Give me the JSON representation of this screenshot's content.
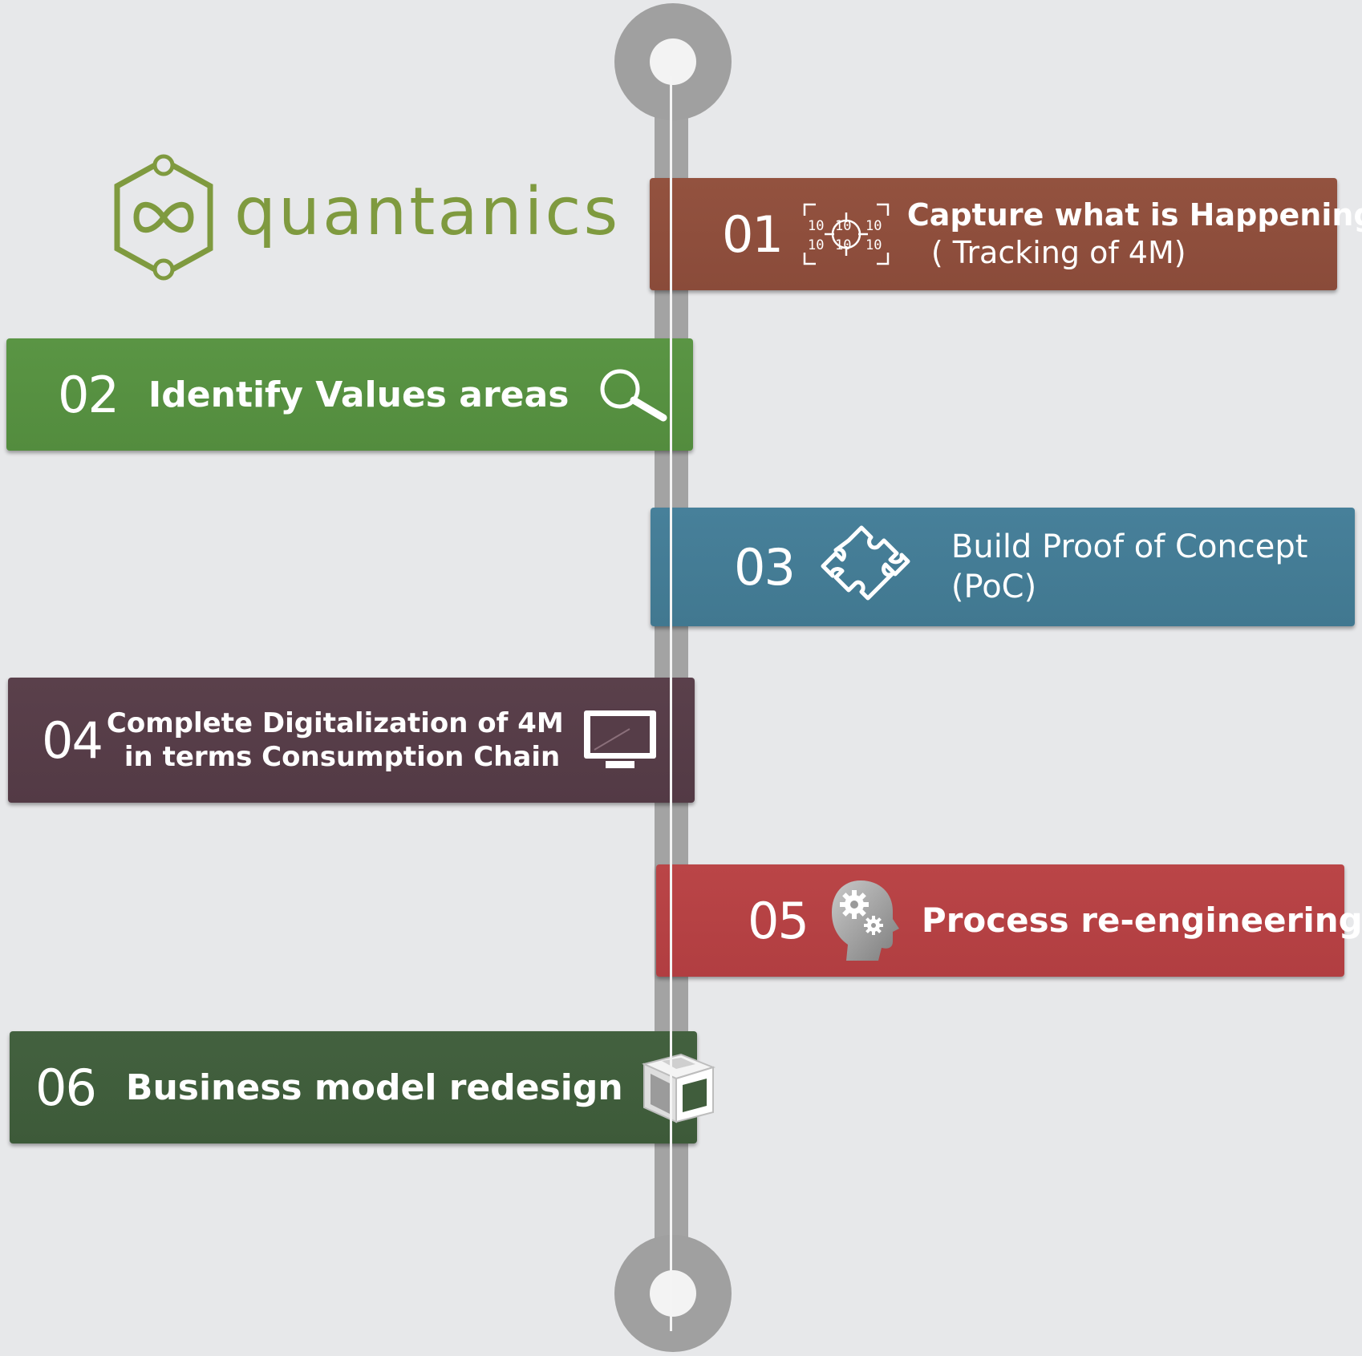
{
  "logo": {
    "name": "quantanics",
    "color": "#7f9a3f"
  },
  "colors": {
    "background": "#e7e8ea",
    "timeline": "#a3a3a3",
    "step1": "#8e4e3c",
    "step2": "#56903f",
    "step3": "#447c95",
    "step4": "#563d48",
    "step5": "#b54144",
    "step6": "#405d3c"
  },
  "steps": [
    {
      "number": "01",
      "line1": "Capture what is Happening",
      "line2": "( Tracking of 4M)",
      "icon": "binary-tracking-icon"
    },
    {
      "number": "02",
      "line1": "Identify Values areas",
      "line2": "",
      "icon": "magnifier-icon"
    },
    {
      "number": "03",
      "line1": "Build Proof of Concept",
      "line2": "(PoC)",
      "icon": "puzzle-icon"
    },
    {
      "number": "04",
      "line1": "Complete Digitalization of 4M",
      "line2": "in terms Consumption Chain",
      "icon": "monitor-icon"
    },
    {
      "number": "05",
      "line1": "Process re-engineering",
      "line2": "",
      "icon": "head-gears-icon"
    },
    {
      "number": "06",
      "line1": "Business model redesign",
      "line2": "",
      "icon": "3d-box-icon"
    }
  ]
}
